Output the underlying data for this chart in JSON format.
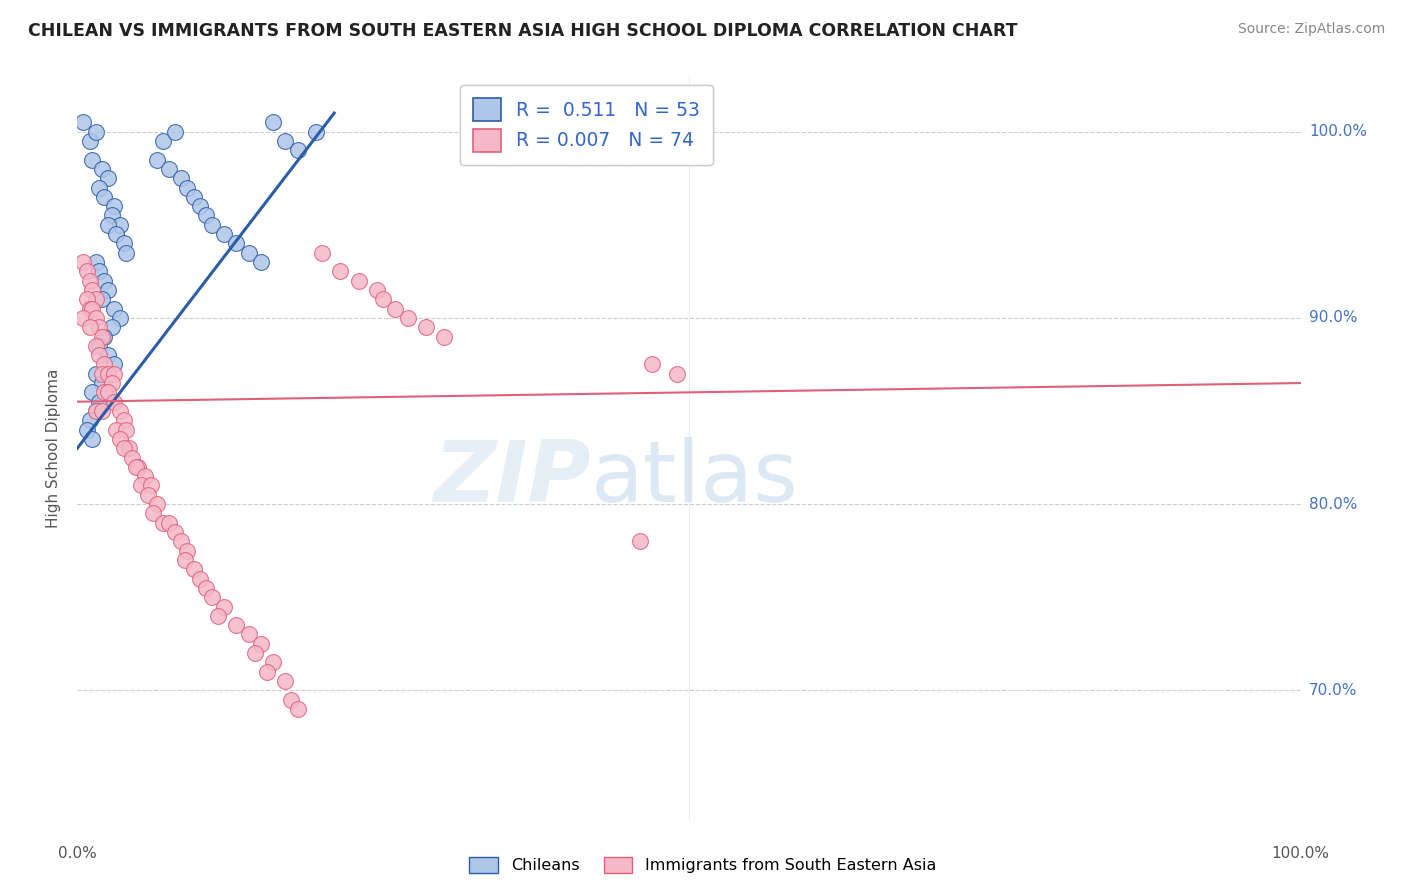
{
  "title": "CHILEAN VS IMMIGRANTS FROM SOUTH EASTERN ASIA HIGH SCHOOL DIPLOMA CORRELATION CHART",
  "source": "Source: ZipAtlas.com",
  "ylabel": "High School Diploma",
  "x_range": [
    0.0,
    1.0
  ],
  "y_range": [
    63.0,
    103.0
  ],
  "blue_R": 0.511,
  "blue_N": 53,
  "pink_R": 0.007,
  "pink_N": 74,
  "blue_color": "#aec6e8",
  "pink_color": "#f5b8c8",
  "blue_line_color": "#2b5da8",
  "pink_line_color": "#e0607a",
  "legend_label_blue": "Chileans",
  "legend_label_pink": "Immigrants from South Eastern Asia",
  "blue_points": [
    [
      0.005,
      100.5
    ],
    [
      0.01,
      99.5
    ],
    [
      0.015,
      100.0
    ],
    [
      0.012,
      98.5
    ],
    [
      0.02,
      98.0
    ],
    [
      0.025,
      97.5
    ],
    [
      0.018,
      97.0
    ],
    [
      0.022,
      96.5
    ],
    [
      0.03,
      96.0
    ],
    [
      0.028,
      95.5
    ],
    [
      0.035,
      95.0
    ],
    [
      0.025,
      95.0
    ],
    [
      0.032,
      94.5
    ],
    [
      0.038,
      94.0
    ],
    [
      0.04,
      93.5
    ],
    [
      0.015,
      93.0
    ],
    [
      0.018,
      92.5
    ],
    [
      0.022,
      92.0
    ],
    [
      0.025,
      91.5
    ],
    [
      0.02,
      91.0
    ],
    [
      0.03,
      90.5
    ],
    [
      0.035,
      90.0
    ],
    [
      0.028,
      89.5
    ],
    [
      0.022,
      89.0
    ],
    [
      0.018,
      88.5
    ],
    [
      0.025,
      88.0
    ],
    [
      0.03,
      87.5
    ],
    [
      0.015,
      87.0
    ],
    [
      0.02,
      86.5
    ],
    [
      0.012,
      86.0
    ],
    [
      0.018,
      85.5
    ],
    [
      0.015,
      85.0
    ],
    [
      0.01,
      84.5
    ],
    [
      0.008,
      84.0
    ],
    [
      0.012,
      83.5
    ],
    [
      0.07,
      99.5
    ],
    [
      0.08,
      100.0
    ],
    [
      0.065,
      98.5
    ],
    [
      0.075,
      98.0
    ],
    [
      0.085,
      97.5
    ],
    [
      0.09,
      97.0
    ],
    [
      0.095,
      96.5
    ],
    [
      0.1,
      96.0
    ],
    [
      0.105,
      95.5
    ],
    [
      0.11,
      95.0
    ],
    [
      0.12,
      94.5
    ],
    [
      0.13,
      94.0
    ],
    [
      0.14,
      93.5
    ],
    [
      0.15,
      93.0
    ],
    [
      0.16,
      100.5
    ],
    [
      0.17,
      99.5
    ],
    [
      0.18,
      99.0
    ],
    [
      0.195,
      100.0
    ]
  ],
  "pink_points": [
    [
      0.005,
      93.0
    ],
    [
      0.008,
      92.5
    ],
    [
      0.01,
      92.0
    ],
    [
      0.012,
      91.5
    ],
    [
      0.015,
      91.0
    ],
    [
      0.008,
      91.0
    ],
    [
      0.01,
      90.5
    ],
    [
      0.012,
      90.5
    ],
    [
      0.005,
      90.0
    ],
    [
      0.015,
      90.0
    ],
    [
      0.018,
      89.5
    ],
    [
      0.01,
      89.5
    ],
    [
      0.02,
      89.0
    ],
    [
      0.015,
      88.5
    ],
    [
      0.018,
      88.0
    ],
    [
      0.022,
      87.5
    ],
    [
      0.02,
      87.0
    ],
    [
      0.025,
      87.0
    ],
    [
      0.03,
      87.0
    ],
    [
      0.028,
      86.5
    ],
    [
      0.022,
      86.0
    ],
    [
      0.025,
      86.0
    ],
    [
      0.03,
      85.5
    ],
    [
      0.015,
      85.0
    ],
    [
      0.02,
      85.0
    ],
    [
      0.035,
      85.0
    ],
    [
      0.038,
      84.5
    ],
    [
      0.032,
      84.0
    ],
    [
      0.04,
      84.0
    ],
    [
      0.035,
      83.5
    ],
    [
      0.042,
      83.0
    ],
    [
      0.038,
      83.0
    ],
    [
      0.045,
      82.5
    ],
    [
      0.05,
      82.0
    ],
    [
      0.048,
      82.0
    ],
    [
      0.055,
      81.5
    ],
    [
      0.052,
      81.0
    ],
    [
      0.06,
      81.0
    ],
    [
      0.058,
      80.5
    ],
    [
      0.065,
      80.0
    ],
    [
      0.062,
      79.5
    ],
    [
      0.07,
      79.0
    ],
    [
      0.075,
      79.0
    ],
    [
      0.08,
      78.5
    ],
    [
      0.085,
      78.0
    ],
    [
      0.09,
      77.5
    ],
    [
      0.088,
      77.0
    ],
    [
      0.095,
      76.5
    ],
    [
      0.1,
      76.0
    ],
    [
      0.105,
      75.5
    ],
    [
      0.11,
      75.0
    ],
    [
      0.12,
      74.5
    ],
    [
      0.115,
      74.0
    ],
    [
      0.13,
      73.5
    ],
    [
      0.14,
      73.0
    ],
    [
      0.15,
      72.5
    ],
    [
      0.145,
      72.0
    ],
    [
      0.16,
      71.5
    ],
    [
      0.155,
      71.0
    ],
    [
      0.17,
      70.5
    ],
    [
      0.175,
      69.5
    ],
    [
      0.18,
      69.0
    ],
    [
      0.2,
      93.5
    ],
    [
      0.215,
      92.5
    ],
    [
      0.23,
      92.0
    ],
    [
      0.245,
      91.5
    ],
    [
      0.25,
      91.0
    ],
    [
      0.26,
      90.5
    ],
    [
      0.27,
      90.0
    ],
    [
      0.285,
      89.5
    ],
    [
      0.3,
      89.0
    ],
    [
      0.46,
      78.0
    ],
    [
      0.47,
      87.5
    ],
    [
      0.49,
      87.0
    ]
  ]
}
